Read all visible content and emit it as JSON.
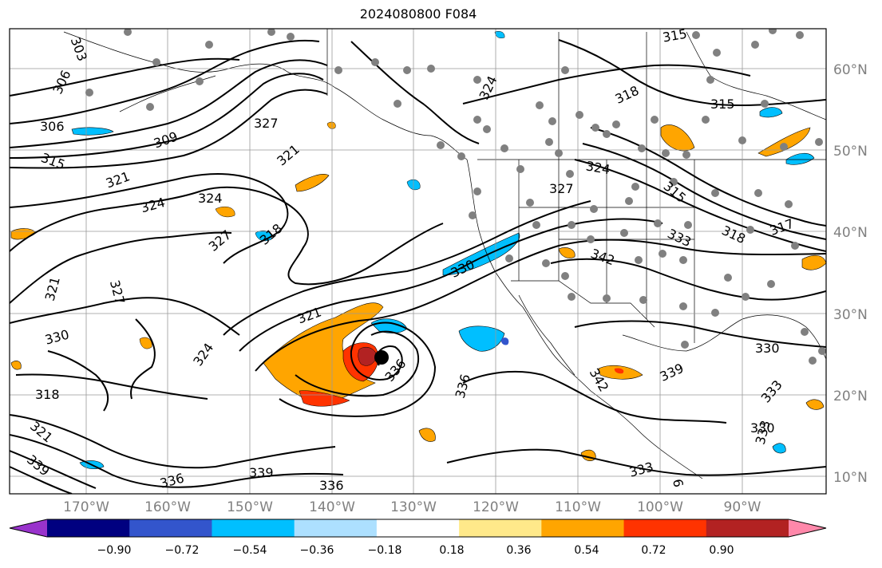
{
  "title": "2024080800 F084",
  "map": {
    "lon_labels": [
      "170°W",
      "160°W",
      "150°W",
      "140°W",
      "130°W",
      "120°W",
      "110°W",
      "100°W",
      "90°W"
    ],
    "lat_labels": [
      "60°N",
      "50°N",
      "40°N",
      "30°N",
      "20°N",
      "10°N"
    ],
    "contour_labels": [
      "303",
      "306",
      "306",
      "309",
      "315",
      "321",
      "324",
      "324",
      "327",
      "327",
      "321",
      "318",
      "321",
      "321",
      "327",
      "330",
      "324",
      "318",
      "321",
      "330",
      "336",
      "339",
      "336",
      "339",
      "336",
      "342",
      "336",
      "330",
      "333",
      "315",
      "315",
      "318",
      "324",
      "324",
      "327",
      "315",
      "333",
      "318",
      "317",
      "333",
      "339",
      "330",
      "342",
      "333",
      "6"
    ],
    "storm_center_color": "#000000"
  },
  "colorbar": {
    "colors": [
      "#9933CC",
      "#000080",
      "#3355CC",
      "#00BFFF",
      "#ADE0FF",
      "#FFFFFF",
      "#FFE98A",
      "#FFA500",
      "#FF3300",
      "#B22222",
      "#FF88AA"
    ],
    "tick_labels": [
      "−0.90",
      "−0.72",
      "−0.54",
      "−0.36",
      "−0.18",
      "0.18",
      "0.36",
      "0.54",
      "0.72",
      "0.90"
    ]
  }
}
